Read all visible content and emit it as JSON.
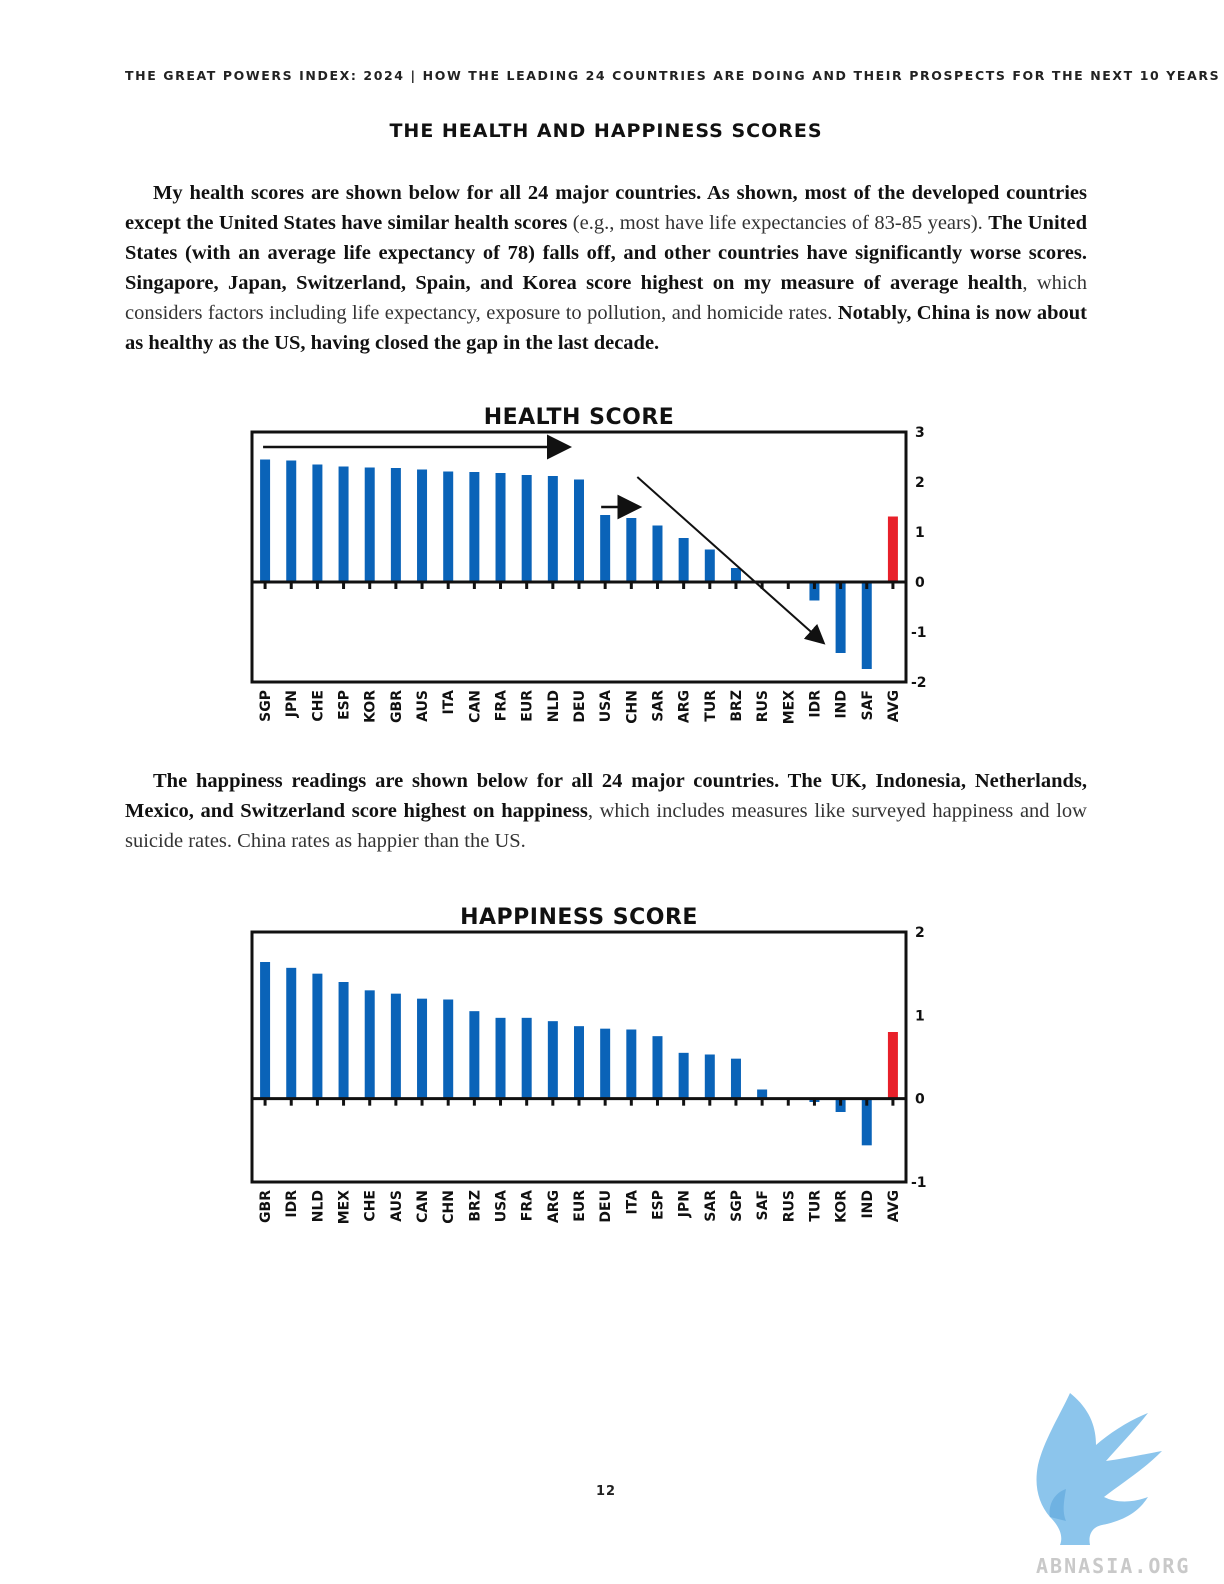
{
  "header": {
    "running_title": "THE GREAT POWERS INDEX: 2024 | HOW THE LEADING 24 COUNTRIES ARE DOING AND THEIR PROSPECTS FOR THE NEXT 10 YEARS"
  },
  "section": {
    "title": "THE HEALTH AND HAPPINESS SCORES"
  },
  "paragraph1": {
    "b1": "My health scores are shown below for all 24 major countries. As shown, most of the developed countries except the United States have similar health scores",
    "t1": " (e.g., most have life expectancies of 83-85 years). ",
    "b2": "The United States (with an average life expectancy of 78) falls off, and other countries have significantly worse scores. Singapore, Japan, Switzerland, Spain, and Korea score highest on my measure of average health",
    "t2": ", which considers factors including life expectancy, exposure to pollution, and homicide rates. ",
    "b3": "Notably, China is now about as healthy as the US, having closed the gap in the last decade."
  },
  "paragraph2": {
    "b1": "The happiness readings are shown below for all 24 major countries. The UK, Indonesia, Netherlands, Mexico, and Switzerland score highest on happiness",
    "t1": ", which includes measures like surveyed happiness and low suicide rates. China rates as happier than the US."
  },
  "page_number": "12",
  "watermark": {
    "text": "ABNASIA.ORG"
  },
  "colors": {
    "bar": "#0a63b8",
    "avg_bar": "#e8202a",
    "axis": "#111111"
  },
  "chart_data": [
    {
      "type": "bar",
      "title": "HEALTH SCORE",
      "categories": [
        "SGP",
        "JPN",
        "CHE",
        "ESP",
        "KOR",
        "GBR",
        "AUS",
        "ITA",
        "CAN",
        "FRA",
        "EUR",
        "NLD",
        "DEU",
        "USA",
        "CHN",
        "SAR",
        "ARG",
        "TUR",
        "BRZ",
        "RUS",
        "MEX",
        "IDR",
        "IND",
        "SAF",
        "AVG"
      ],
      "values": [
        2.45,
        2.43,
        2.35,
        2.31,
        2.29,
        2.28,
        2.25,
        2.21,
        2.2,
        2.18,
        2.14,
        2.12,
        2.05,
        1.34,
        1.28,
        1.13,
        0.88,
        0.65,
        0.28,
        0.0,
        0.0,
        -0.37,
        -1.42,
        -1.74,
        1.31
      ],
      "highlight": "AVG",
      "ylim": [
        -2,
        3
      ],
      "yticks": [
        "3",
        "2",
        "1",
        "0",
        "-1",
        "-2"
      ],
      "y_axis_side": "right",
      "annotations": [
        "arrow right over SGP–DEU",
        "short arrow right over USA–CHN",
        "diagonal arrow down from CHN to IND"
      ],
      "grid": false
    },
    {
      "type": "bar",
      "title": "HAPPINESS SCORE",
      "categories": [
        "GBR",
        "IDR",
        "NLD",
        "MEX",
        "CHE",
        "AUS",
        "CAN",
        "CHN",
        "BRZ",
        "USA",
        "FRA",
        "ARG",
        "EUR",
        "DEU",
        "ITA",
        "ESP",
        "JPN",
        "SAR",
        "SGP",
        "SAF",
        "RUS",
        "TUR",
        "KOR",
        "IND",
        "AVG"
      ],
      "values": [
        1.64,
        1.57,
        1.5,
        1.4,
        1.3,
        1.26,
        1.2,
        1.19,
        1.05,
        0.97,
        0.97,
        0.93,
        0.87,
        0.84,
        0.83,
        0.75,
        0.55,
        0.53,
        0.48,
        0.11,
        0.0,
        -0.04,
        -0.16,
        -0.56,
        0.8
      ],
      "highlight": "AVG",
      "ylim": [
        -1,
        2
      ],
      "yticks": [
        "2",
        "1",
        "0",
        "-1"
      ],
      "y_axis_side": "right",
      "grid": false
    }
  ]
}
